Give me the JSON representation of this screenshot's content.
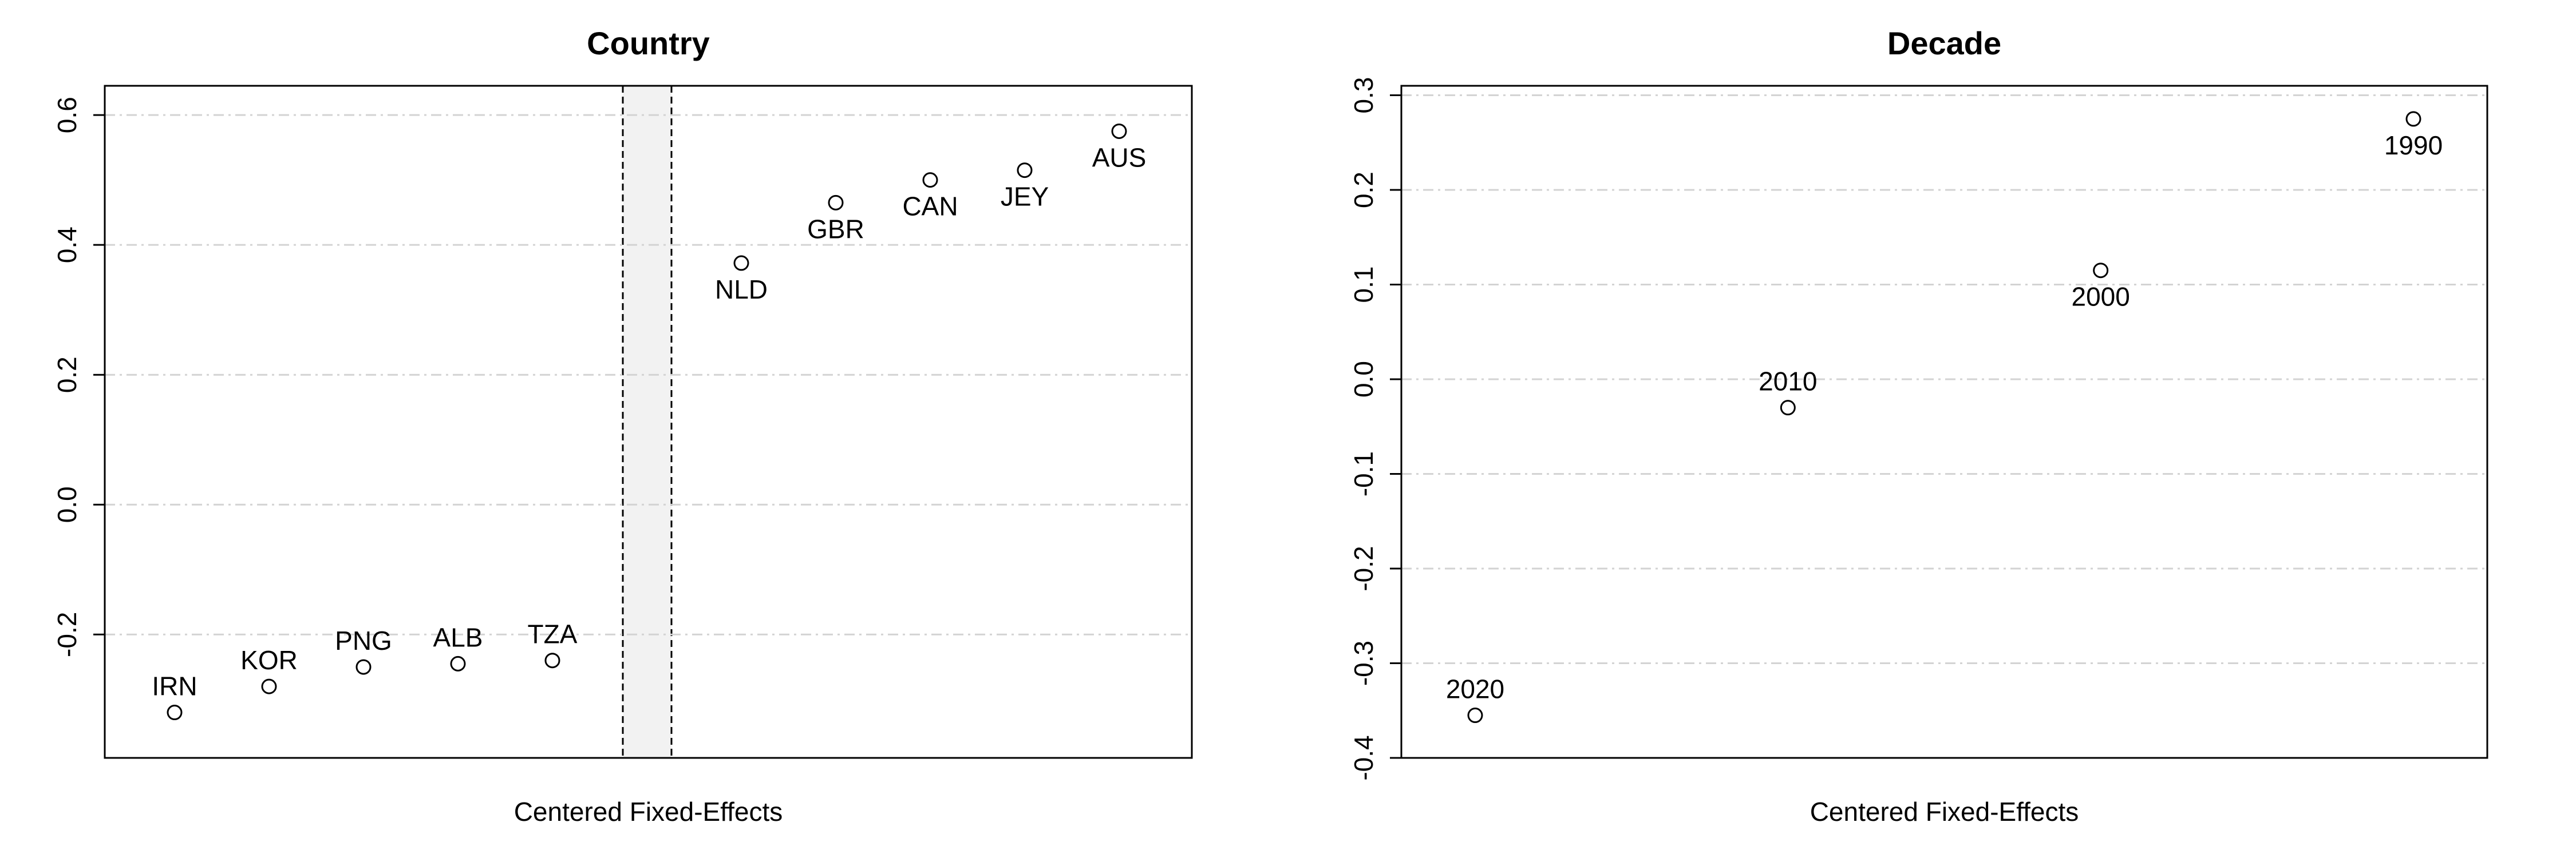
{
  "chart_data": [
    {
      "type": "scatter",
      "title": "Country",
      "xlabel": "Centered Fixed-Effects",
      "ylabel": "",
      "ylim": [
        -0.39,
        0.645
      ],
      "yticks": [
        -0.2,
        0.0,
        0.2,
        0.4,
        0.6
      ],
      "ytick_labels": [
        "-0.2",
        "0.0",
        "0.2",
        "0.4",
        "0.6"
      ],
      "grid": true,
      "split_after_index": 4,
      "points": [
        {
          "label": "IRN",
          "y": -0.32,
          "label_pos": "above"
        },
        {
          "label": "KOR",
          "y": -0.28,
          "label_pos": "above"
        },
        {
          "label": "PNG",
          "y": -0.25,
          "label_pos": "above"
        },
        {
          "label": "ALB",
          "y": -0.245,
          "label_pos": "above"
        },
        {
          "label": "TZA",
          "y": -0.24,
          "label_pos": "above"
        },
        {
          "label": "NLD",
          "y": 0.372,
          "label_pos": "below"
        },
        {
          "label": "GBR",
          "y": 0.465,
          "label_pos": "below"
        },
        {
          "label": "CAN",
          "y": 0.5,
          "label_pos": "below"
        },
        {
          "label": "JEY",
          "y": 0.515,
          "label_pos": "below"
        },
        {
          "label": "AUS",
          "y": 0.575,
          "label_pos": "below"
        }
      ]
    },
    {
      "type": "scatter",
      "title": "Decade",
      "xlabel": "Centered Fixed-Effects",
      "ylabel": "",
      "ylim": [
        -0.4,
        0.31
      ],
      "yticks": [
        -0.4,
        -0.3,
        -0.2,
        -0.1,
        0.0,
        0.1,
        0.2,
        0.3
      ],
      "ytick_labels": [
        "-0.4",
        "-0.3",
        "-0.2",
        "-0.1",
        "0.0",
        "0.1",
        "0.2",
        "0.3"
      ],
      "grid": true,
      "points": [
        {
          "label": "2020",
          "y": -0.355,
          "label_pos": "above"
        },
        {
          "label": "2010",
          "y": -0.03,
          "label_pos": "above"
        },
        {
          "label": "2000",
          "y": 0.115,
          "label_pos": "below"
        },
        {
          "label": "1990",
          "y": 0.275,
          "label_pos": "below"
        }
      ]
    }
  ]
}
